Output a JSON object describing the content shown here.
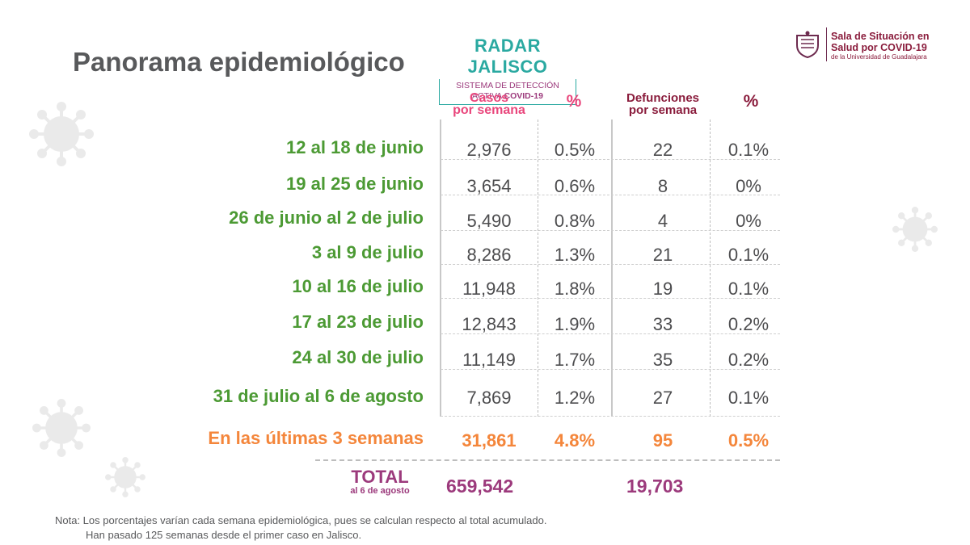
{
  "header": {
    "title": "Panorama epidemiológico",
    "radar_title": "RADAR JALISCO",
    "radar_sub1": "SISTEMA DE DETECCIÓN",
    "radar_sub2_prefix": "ACTIVA ",
    "radar_sub2_bold": "COVID-19",
    "sala_line1": "Sala de Situación en",
    "sala_line2": "Salud por COVID-19",
    "sala_line3": "de la Universidad de Guadalajara"
  },
  "columns": {
    "casos_line1": "Casos",
    "casos_line2": "por semana",
    "pct1": "%",
    "def_line1": "Defunciones",
    "def_line2": "por semana",
    "pct2": "%"
  },
  "rows": [
    {
      "label": "12 al 18 de junio",
      "casos": "2,976",
      "pct_casos": "0.5%",
      "defunciones": "22",
      "pct_def": "0.1%"
    },
    {
      "label": "19 al 25 de junio",
      "casos": "3,654",
      "pct_casos": "0.6%",
      "defunciones": "8",
      "pct_def": "0%"
    },
    {
      "label": "26 de junio al 2 de julio",
      "casos": "5,490",
      "pct_casos": "0.8%",
      "defunciones": "4",
      "pct_def": "0%"
    },
    {
      "label": "3 al 9 de julio",
      "casos": "8,286",
      "pct_casos": "1.3%",
      "defunciones": "21",
      "pct_def": "0.1%"
    },
    {
      "label": "10 al 16 de julio",
      "casos": "11,948",
      "pct_casos": "1.8%",
      "defunciones": "19",
      "pct_def": "0.1%"
    },
    {
      "label": "17 al 23 de julio",
      "casos": "12,843",
      "pct_casos": "1.9%",
      "defunciones": "33",
      "pct_def": "0.2%"
    },
    {
      "label": "24 al 30 de julio",
      "casos": "11,149",
      "pct_casos": "1.7%",
      "defunciones": "35",
      "pct_def": "0.2%"
    },
    {
      "label": "31 de julio al 6 de agosto",
      "casos": "7,869",
      "pct_casos": "1.2%",
      "defunciones": "27",
      "pct_def": "0.1%"
    }
  ],
  "summary": {
    "label": "En las últimas 3 semanas",
    "casos": "31,861",
    "pct_casos": "4.8%",
    "defunciones": "95",
    "pct_def": "0.5%"
  },
  "total": {
    "label": "TOTAL",
    "sublabel": "al 6 de agosto",
    "casos": "659,542",
    "defunciones": "19,703"
  },
  "note": {
    "line1": "Nota: Los porcentajes varían cada semana epidemiológica, pues se calculan respecto al total acumulado.",
    "line2": "Han pasado 125 semanas desde el primer caso en Jalisco."
  },
  "colors": {
    "label_green": "#4c9a34",
    "orange": "#f4863b",
    "pink": "#e9467c",
    "maroon": "#8a1c3c",
    "purple": "#9c3a7c",
    "teal": "#2aa9a1"
  }
}
